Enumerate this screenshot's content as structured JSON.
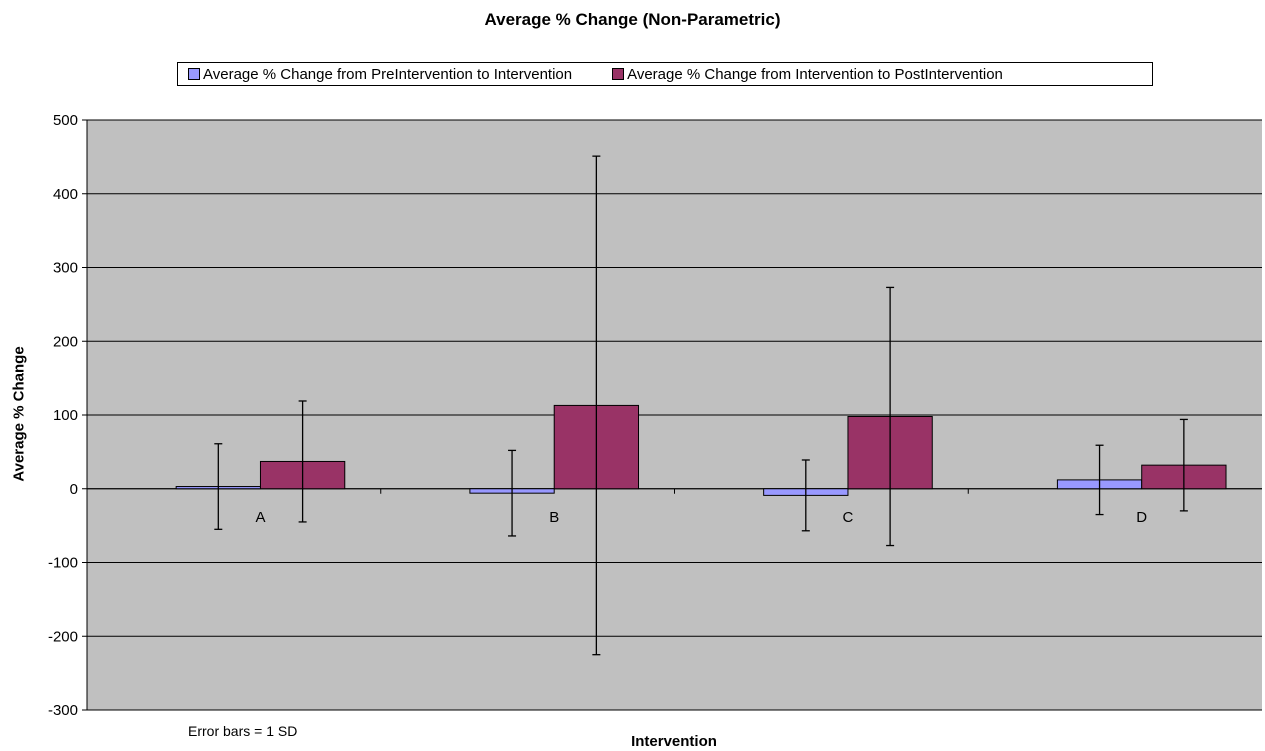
{
  "chart_data": {
    "type": "bar",
    "title": "Average % Change (Non-Parametric)",
    "xlabel": "Intervention",
    "ylabel": "Average % Change",
    "categories": [
      "A",
      "B",
      "C",
      "D"
    ],
    "ylim": [
      -300,
      500
    ],
    "yticks": [
      500,
      400,
      300,
      200,
      100,
      0,
      -100,
      -200,
      -300
    ],
    "grid": true,
    "legend_position": "top",
    "plot_background": "#c0c0c0",
    "note": "Error bars = 1 SD",
    "series": [
      {
        "name": "Average % Change from PreIntervention to Intervention",
        "color": "#9999ff",
        "values": [
          3,
          -6,
          -9,
          12
        ],
        "sd": [
          58,
          58,
          48,
          47
        ]
      },
      {
        "name": "Average % Change from Intervention to PostIntervention",
        "color": "#993366",
        "values": [
          37,
          113,
          98,
          32
        ],
        "sd": [
          82,
          338,
          175,
          62
        ]
      }
    ]
  }
}
